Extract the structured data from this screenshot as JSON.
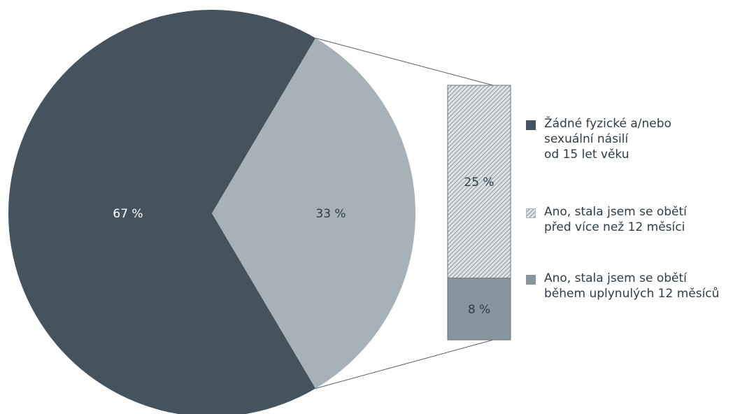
{
  "chart_data": {
    "type": "pie",
    "title": "",
    "slices": [
      {
        "label": "Žádné fyzické a/nebo sexuální násilí od 15 let věku",
        "value": 67,
        "color": "#44535e"
      },
      {
        "label": "Ano, stala jsem se obětí",
        "value": 33,
        "color": "#a6b1b8"
      }
    ],
    "breakdown": {
      "of": "Ano, stala jsem se obětí",
      "segments": [
        {
          "label": "Ano, stala jsem se obětí před více než 12 měsíci",
          "value": 25,
          "color": "#c9d0d5",
          "pattern": "hatched"
        },
        {
          "label": "Ano, stala jsem se obětí během uplynulých 12 měsíců",
          "value": 8,
          "color": "#87959e",
          "pattern": "solid"
        }
      ]
    },
    "value_labels": {
      "pie": [
        "67 %",
        "33 %"
      ],
      "bar": [
        "25 %",
        "8 %"
      ]
    },
    "legend": {
      "placement": "right",
      "items": [
        {
          "text": "Žádné fyzické a/nebo\nsexuální násilí\nod 15 let věku",
          "swatch": "#44535e"
        },
        {
          "text": "Ano, stala jsem se obětí\npřed více než 12 měsíci",
          "swatch": "hatched"
        },
        {
          "text": "Ano, stala jsem se obětí\nběhem uplynulých 12 měsíců",
          "swatch": "#87959e"
        }
      ]
    }
  }
}
